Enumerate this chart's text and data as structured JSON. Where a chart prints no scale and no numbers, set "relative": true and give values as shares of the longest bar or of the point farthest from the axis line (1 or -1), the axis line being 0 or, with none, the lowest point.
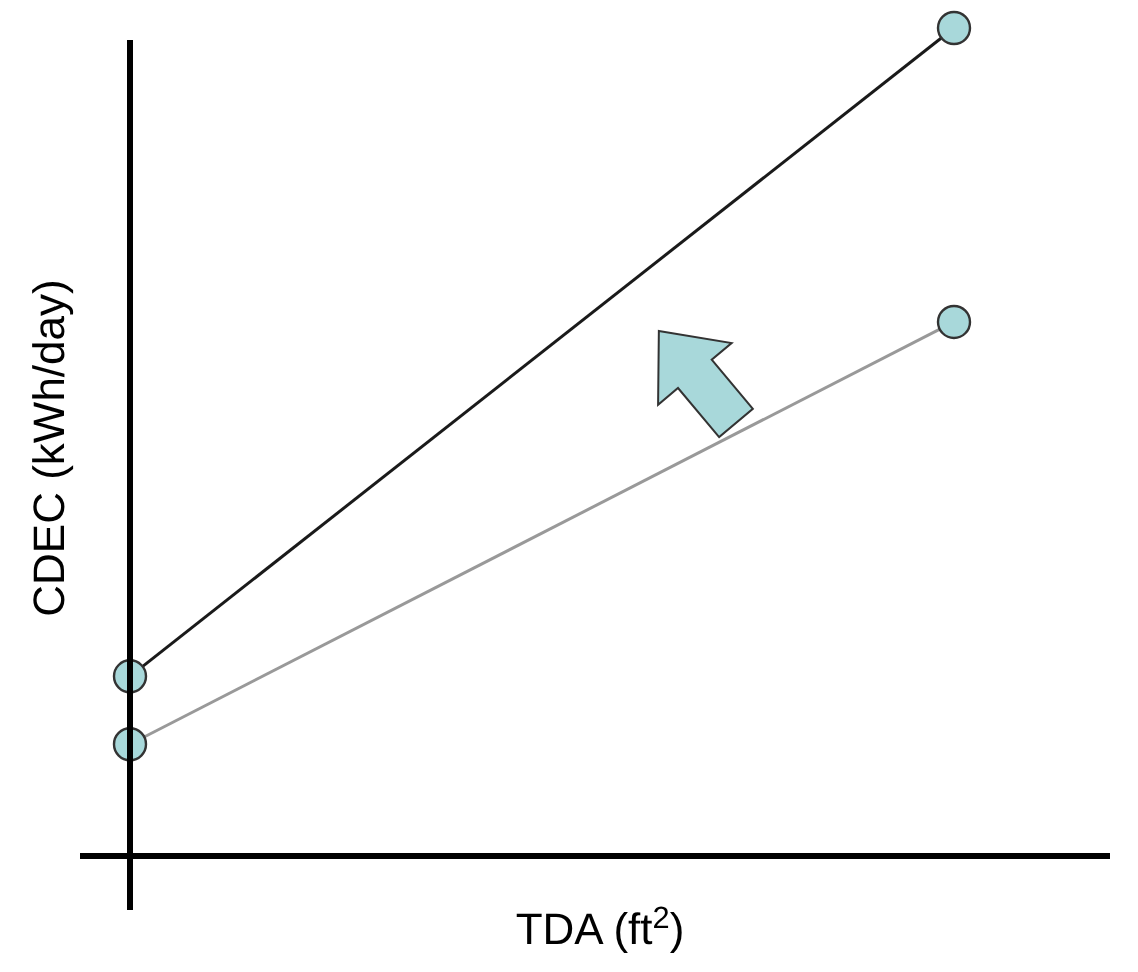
{
  "chart_data": {
    "type": "line",
    "relative": true,
    "xlabel": "TDA (ft$^{2}$)",
    "ylabel": "CDEC (kWh/day)",
    "categories": [
      null,
      null
    ],
    "marker": "circle",
    "series": [
      {
        "color": "#1a1a1a",
        "values": [
          0.217,
          1
        ]
      },
      {
        "color": "#999999",
        "values": [
          0.135,
          0.645
        ]
      }
    ]
  }
}
